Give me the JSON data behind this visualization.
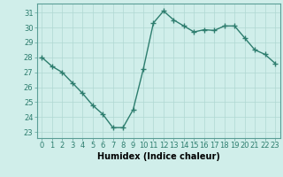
{
  "x": [
    0,
    1,
    2,
    3,
    4,
    5,
    6,
    7,
    8,
    9,
    10,
    11,
    12,
    13,
    14,
    15,
    16,
    17,
    18,
    19,
    20,
    21,
    22,
    23
  ],
  "y": [
    28.0,
    27.4,
    27.0,
    26.3,
    25.6,
    24.8,
    24.2,
    23.3,
    23.3,
    24.5,
    27.2,
    30.3,
    31.1,
    30.5,
    30.1,
    29.7,
    29.85,
    29.8,
    30.1,
    30.1,
    29.3,
    28.5,
    28.2,
    27.6
  ],
  "line_color": "#2d7d6e",
  "marker": "+",
  "marker_size": 4,
  "bg_color": "#d0eeea",
  "grid_color": "#b0d8d2",
  "xlabel": "Humidex (Indice chaleur)",
  "xlabel_fontsize": 7,
  "tick_fontsize": 6,
  "ylabel_ticks": [
    23,
    24,
    25,
    26,
    27,
    28,
    29,
    30,
    31
  ],
  "xlim": [
    -0.5,
    23.5
  ],
  "ylim": [
    22.6,
    31.6
  ],
  "line_width": 1.0
}
